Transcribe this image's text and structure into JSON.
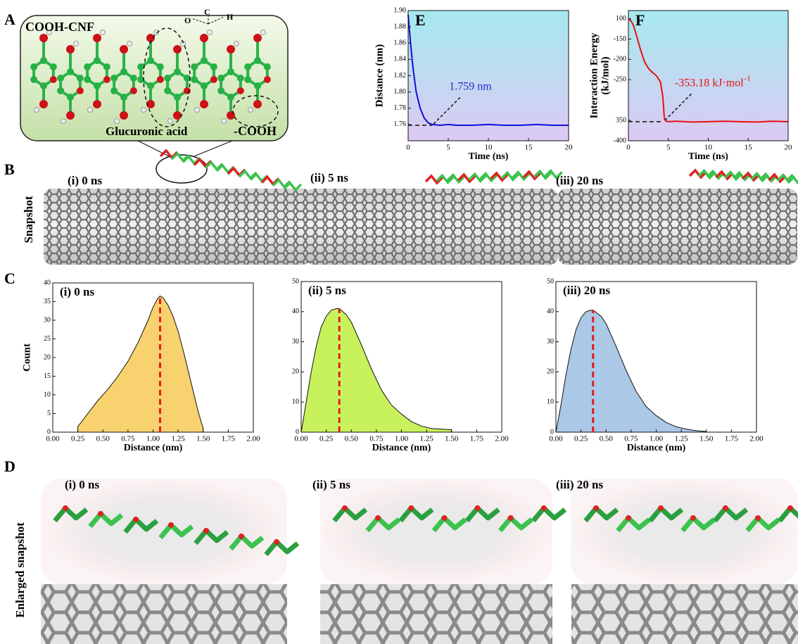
{
  "panel_a": {
    "label": "A",
    "title": "COOH-CNF",
    "atom_labels": [
      "O",
      "C",
      "H"
    ],
    "annotations": [
      "Glucuronic acid",
      "-COOH"
    ]
  },
  "panel_b": {
    "label": "B",
    "side_label": "Snapshot",
    "snapshots": [
      "(i) 0 ns",
      "(ii) 5 ns",
      "(iii) 20 ns"
    ]
  },
  "panel_c": {
    "label": "C"
  },
  "panel_d": {
    "label": "D",
    "side_label": "Enlarged snapshot",
    "snapshots": [
      "(i) 0 ns",
      "(ii) 5 ns",
      "(iii) 20 ns"
    ]
  },
  "chart_data": [
    {
      "type": "line",
      "panel_label": "E",
      "xlabel": "Time (ns)",
      "ylabel": [
        "Distance (nm)"
      ],
      "background_gradient": [
        "#a6e9ef",
        "#dccaf3"
      ],
      "x": [
        0,
        0.3,
        0.6,
        1,
        1.5,
        2,
        2.5,
        3,
        4,
        5,
        6,
        8,
        10,
        12,
        14,
        16,
        18,
        20
      ],
      "series": [
        {
          "color": "#1010d8",
          "values": [
            1.895,
            1.86,
            1.83,
            1.8,
            1.78,
            1.768,
            1.762,
            1.76,
            1.759,
            1.76,
            1.759,
            1.759,
            1.76,
            1.759,
            1.759,
            1.76,
            1.759,
            1.759
          ]
        }
      ],
      "reference_y": 1.759,
      "annotation": "1.759 nm",
      "annotation_color": "#1e2bd0",
      "xlim": [
        0,
        20
      ],
      "xticks": [
        0,
        5,
        10,
        15,
        20
      ],
      "ylim": [
        1.74,
        1.9
      ],
      "yticks": [
        {
          "value": 1.76,
          "label": "1.76"
        },
        {
          "value": 1.78,
          "label": "1.78"
        },
        {
          "value": 1.8,
          "label": "1.80"
        },
        {
          "value": 1.82,
          "label": "1.82"
        },
        {
          "value": 1.84,
          "label": "1.84"
        },
        {
          "value": 1.86,
          "label": "1.86"
        },
        {
          "value": 1.88,
          "label": "1.88"
        },
        {
          "value": 1.9,
          "label": "1.90"
        }
      ]
    },
    {
      "type": "line",
      "panel_label": "F",
      "xlabel": "Time (ns)",
      "ylabel": [
        "Interaction Energy",
        "(kJ/mol)"
      ],
      "background_gradient": [
        "#a6e9ef",
        "#dccaf3"
      ],
      "x": [
        0,
        0.3,
        0.6,
        1,
        1.5,
        2,
        2.5,
        3,
        3.5,
        4,
        4.3,
        4.5,
        4.7,
        5,
        6,
        8,
        10,
        12,
        14,
        16,
        18,
        20
      ],
      "series": [
        {
          "color": "#e81010",
          "values": [
            -100,
            -105,
            -115,
            -140,
            -175,
            -205,
            -222,
            -232,
            -240,
            -255,
            -290,
            -345,
            -352,
            -353,
            -352,
            -354,
            -353,
            -352,
            -353,
            -354,
            -352,
            -353
          ]
        }
      ],
      "reference_y": -353.18,
      "annotation": "-353.18 kJ·mol",
      "annotation_sup": "-1",
      "annotation_color": "#e81010",
      "xlim": [
        0,
        20
      ],
      "xticks": [
        0,
        5,
        10,
        15,
        20
      ],
      "ylim": [
        -400,
        -80
      ],
      "yticks": [
        {
          "value": -100,
          "label": "100"
        },
        -150,
        -200,
        -250,
        {
          "value": -350,
          "label": "350"
        },
        -400
      ]
    },
    {
      "type": "area",
      "title": "(i) 0 ns",
      "xlabel": "Distance (nm)",
      "ylabel": [
        "Count"
      ],
      "color": "#f9d270",
      "reference_x": 1.07,
      "x": [
        0.25,
        0.35,
        0.45,
        0.55,
        0.65,
        0.75,
        0.85,
        0.95,
        1.0,
        1.05,
        1.07,
        1.1,
        1.15,
        1.2,
        1.25,
        1.3,
        1.35,
        1.4,
        1.45,
        1.5
      ],
      "values": [
        1.5,
        5,
        8.5,
        11.5,
        15,
        19,
        24,
        30,
        33.5,
        36,
        36.5,
        36,
        34,
        31,
        27,
        22,
        16.5,
        11,
        5.5,
        1
      ],
      "xlim": [
        0,
        2
      ],
      "ylim": [
        0,
        40
      ],
      "yticks": [
        0,
        5,
        10,
        15,
        20,
        25,
        30,
        35,
        40
      ],
      "xticks": [
        {
          "value": 0,
          "label": "0.00"
        },
        {
          "value": 0.25,
          "label": "0.25"
        },
        {
          "value": 0.5,
          "label": "0.50"
        },
        {
          "value": 0.75,
          "label": "0.75"
        },
        {
          "value": 1,
          "label": "1.00"
        },
        {
          "value": 1.25,
          "label": "1.25"
        },
        {
          "value": 1.5,
          "label": "1.50"
        },
        {
          "value": 1.75,
          "label": "1.75"
        },
        {
          "value": 2,
          "label": "2.00"
        }
      ]
    },
    {
      "type": "area",
      "title": "(ii) 5 ns",
      "xlabel": "Distance (nm)",
      "color": "#c8f25c",
      "reference_x": 0.38,
      "x": [
        0,
        0.05,
        0.1,
        0.15,
        0.2,
        0.25,
        0.3,
        0.35,
        0.38,
        0.45,
        0.5,
        0.6,
        0.7,
        0.8,
        0.9,
        1.0,
        1.1,
        1.2,
        1.3,
        1.4,
        1.5
      ],
      "values": [
        0,
        10,
        20,
        28.5,
        35,
        38.5,
        40.5,
        41,
        41,
        39,
        36.5,
        29,
        21,
        14,
        9,
        6,
        3.5,
        2,
        1.2,
        1,
        0.8
      ],
      "xlim": [
        0,
        2
      ],
      "ylim": [
        0,
        50
      ],
      "yticks": [
        0,
        10,
        20,
        30,
        40,
        50
      ],
      "xticks": [
        {
          "value": 0,
          "label": "0.00"
        },
        {
          "value": 0.25,
          "label": "0.25"
        },
        {
          "value": 0.5,
          "label": "0.50"
        },
        {
          "value": 0.75,
          "label": "0.75"
        },
        {
          "value": 1,
          "label": "1.00"
        },
        {
          "value": 1.25,
          "label": "1.25"
        },
        {
          "value": 1.5,
          "label": "1.50"
        },
        {
          "value": 1.75,
          "label": "1.75"
        },
        {
          "value": 2,
          "label": "2.00"
        }
      ]
    },
    {
      "type": "area",
      "title": "(iii) 20 ns",
      "xlabel": "Distance (nm)",
      "color": "#abc8e6",
      "reference_x": 0.37,
      "x": [
        0,
        0.05,
        0.1,
        0.15,
        0.2,
        0.25,
        0.3,
        0.35,
        0.37,
        0.45,
        0.5,
        0.6,
        0.7,
        0.8,
        0.9,
        1.0,
        1.1,
        1.2,
        1.3,
        1.4,
        1.5
      ],
      "values": [
        0,
        9,
        19,
        27.5,
        34,
        38,
        40,
        40.5,
        40.5,
        38.5,
        36,
        28.5,
        20.5,
        13.5,
        8.5,
        5.5,
        3.2,
        1.8,
        1,
        0.5,
        0.2
      ],
      "xlim": [
        0,
        2
      ],
      "ylim": [
        0,
        50
      ],
      "yticks": [
        0,
        10,
        20,
        30,
        40,
        50
      ],
      "xticks": [
        {
          "value": 0,
          "label": "0.00"
        },
        {
          "value": 0.25,
          "label": "0.25"
        },
        {
          "value": 0.5,
          "label": "0.50"
        },
        {
          "value": 0.75,
          "label": "0.75"
        },
        {
          "value": 1,
          "label": "1.00"
        },
        {
          "value": 1.25,
          "label": "1.25"
        },
        {
          "value": 1.5,
          "label": "1.50"
        },
        {
          "value": 1.75,
          "label": "1.75"
        },
        {
          "value": 2,
          "label": "2.00"
        }
      ]
    }
  ]
}
